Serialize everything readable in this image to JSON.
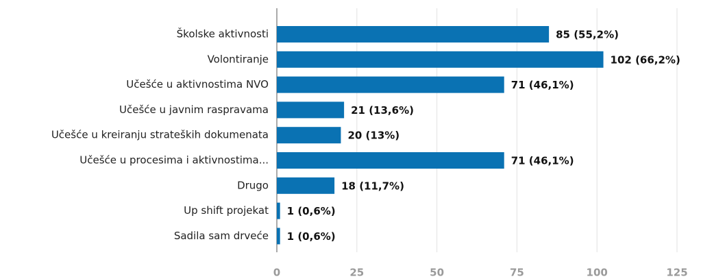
{
  "chart_data": {
    "type": "bar",
    "orientation": "horizontal",
    "categories": [
      "Školske aktivnosti",
      "Volontiranje",
      "Učešće u aktivnostima NVO",
      "Učešće u javnim raspravama",
      "Učešće u kreiranju strateških dokumenata",
      "Učešće u procesima i aktivnostima...",
      "Drugo",
      "Up shift projekat",
      "Sadila sam drveće"
    ],
    "values": [
      85,
      102,
      71,
      21,
      20,
      71,
      18,
      1,
      1
    ],
    "value_labels": [
      "85 (55,2%)",
      "102 (66,2%)",
      "71 (46,1%)",
      "21 (13,6%)",
      "20 (13%)",
      "71 (46,1%)",
      "18 (11,7%)",
      "1 (0,6%)",
      "1 (0,6%)"
    ],
    "color": "#0a72b3",
    "xlim": [
      0,
      125
    ],
    "xticks": [
      0,
      25,
      50,
      75,
      100,
      125
    ],
    "grid": true
  }
}
